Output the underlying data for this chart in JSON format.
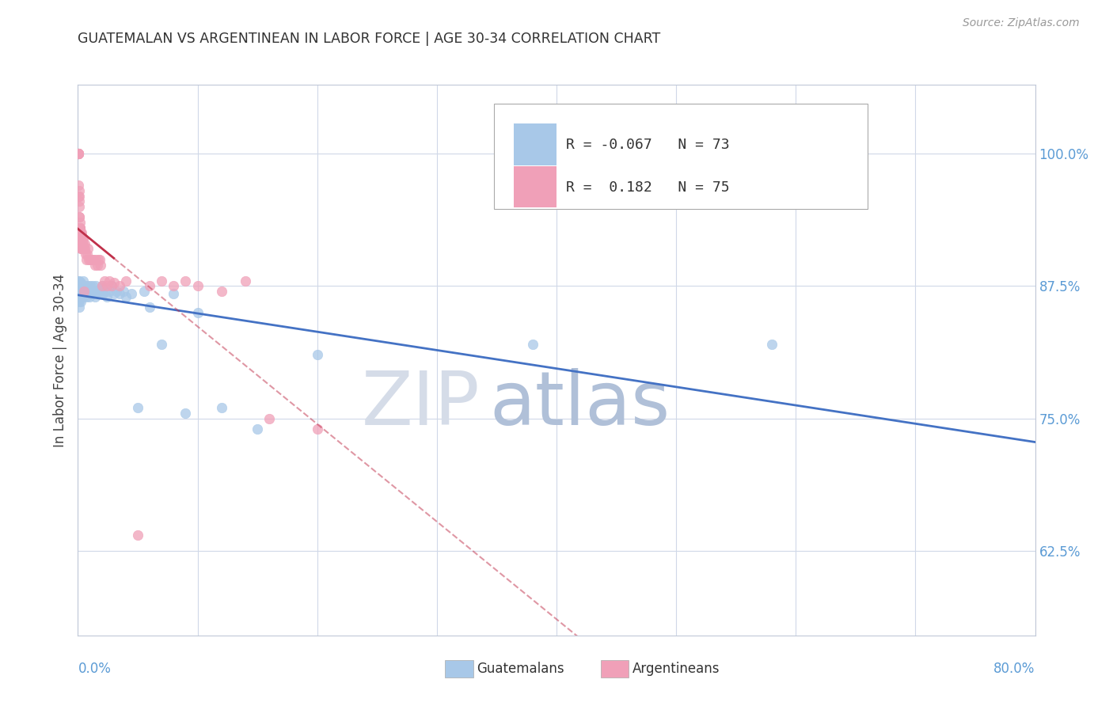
{
  "title": "GUATEMALAN VS ARGENTINEAN IN LABOR FORCE | AGE 30-34 CORRELATION CHART",
  "source": "Source: ZipAtlas.com",
  "ylabel": "In Labor Force | Age 30-34",
  "yticks": [
    0.625,
    0.75,
    0.875,
    1.0
  ],
  "ytick_labels": [
    "62.5%",
    "75.0%",
    "87.5%",
    "100.0%"
  ],
  "legend_label1": "Guatemalans",
  "legend_label2": "Argentineans",
  "R1": "-0.067",
  "N1": "73",
  "R2": "0.182",
  "N2": "75",
  "blue_color": "#A8C8E8",
  "pink_color": "#F0A0B8",
  "trend_blue": "#4472C4",
  "trend_pink": "#C0304A",
  "watermark_zip": "#D0DCF0",
  "watermark_atlas": "#A0B8D8",
  "background_color": "#FFFFFF",
  "xlim": [
    0.0,
    0.8
  ],
  "ylim": [
    0.545,
    1.065
  ],
  "guatemalan_x": [
    0.0005,
    0.0006,
    0.0007,
    0.0008,
    0.001,
    0.001,
    0.001,
    0.0012,
    0.0013,
    0.0014,
    0.0015,
    0.0016,
    0.0017,
    0.0018,
    0.002,
    0.0022,
    0.0023,
    0.0025,
    0.0027,
    0.0028,
    0.003,
    0.0032,
    0.0035,
    0.0038,
    0.004,
    0.0042,
    0.0045,
    0.0048,
    0.005,
    0.0055,
    0.006,
    0.0065,
    0.007,
    0.0075,
    0.008,
    0.0085,
    0.009,
    0.0095,
    0.01,
    0.0105,
    0.011,
    0.0115,
    0.012,
    0.013,
    0.014,
    0.015,
    0.016,
    0.017,
    0.018,
    0.019,
    0.02,
    0.021,
    0.022,
    0.024,
    0.026,
    0.028,
    0.03,
    0.032,
    0.035,
    0.038,
    0.04,
    0.045,
    0.05,
    0.055,
    0.06,
    0.07,
    0.08,
    0.09,
    0.1,
    0.12,
    0.15,
    0.2,
    0.38,
    0.58
  ],
  "guatemalan_y": [
    0.88,
    0.868,
    0.875,
    0.862,
    0.87,
    0.86,
    0.855,
    0.88,
    0.865,
    0.875,
    0.87,
    0.868,
    0.872,
    0.868,
    0.87,
    0.878,
    0.86,
    0.875,
    0.87,
    0.865,
    0.87,
    0.872,
    0.868,
    0.875,
    0.87,
    0.88,
    0.865,
    0.87,
    0.868,
    0.872,
    0.875,
    0.87,
    0.865,
    0.87,
    0.875,
    0.868,
    0.872,
    0.865,
    0.87,
    0.875,
    0.868,
    0.87,
    0.875,
    0.87,
    0.865,
    0.875,
    0.87,
    0.868,
    0.87,
    0.872,
    0.875,
    0.868,
    0.87,
    0.865,
    0.87,
    0.875,
    0.868,
    0.87,
    0.868,
    0.87,
    0.865,
    0.868,
    0.76,
    0.87,
    0.855,
    0.82,
    0.868,
    0.755,
    0.85,
    0.76,
    0.74,
    0.81,
    0.82,
    0.82
  ],
  "argentinean_x": [
    0.0003,
    0.0004,
    0.0005,
    0.0005,
    0.0005,
    0.0006,
    0.0006,
    0.0007,
    0.0007,
    0.0008,
    0.0008,
    0.0008,
    0.0009,
    0.001,
    0.001,
    0.0011,
    0.0012,
    0.0013,
    0.0014,
    0.0015,
    0.0016,
    0.0017,
    0.0018,
    0.0019,
    0.002,
    0.0021,
    0.0022,
    0.0023,
    0.0025,
    0.0027,
    0.0028,
    0.003,
    0.0032,
    0.0035,
    0.0038,
    0.004,
    0.0042,
    0.0045,
    0.0048,
    0.005,
    0.0055,
    0.006,
    0.0065,
    0.007,
    0.0075,
    0.008,
    0.009,
    0.01,
    0.011,
    0.012,
    0.013,
    0.014,
    0.015,
    0.016,
    0.017,
    0.018,
    0.019,
    0.02,
    0.022,
    0.024,
    0.026,
    0.028,
    0.03,
    0.035,
    0.04,
    0.05,
    0.06,
    0.07,
    0.08,
    0.09,
    0.1,
    0.12,
    0.14,
    0.16,
    0.2
  ],
  "argentinean_y": [
    1.0,
    1.0,
    1.0,
    1.0,
    1.0,
    1.0,
    1.0,
    0.96,
    0.97,
    0.95,
    0.94,
    0.965,
    0.93,
    0.955,
    0.96,
    0.93,
    0.94,
    0.92,
    0.93,
    0.92,
    0.935,
    0.93,
    0.925,
    0.92,
    0.93,
    0.925,
    0.91,
    0.92,
    0.92,
    0.915,
    0.925,
    0.91,
    0.915,
    0.92,
    0.915,
    0.91,
    0.915,
    0.92,
    0.91,
    0.87,
    0.915,
    0.91,
    0.905,
    0.9,
    0.905,
    0.91,
    0.9,
    0.9,
    0.9,
    0.9,
    0.9,
    0.895,
    0.9,
    0.895,
    0.9,
    0.9,
    0.895,
    0.875,
    0.88,
    0.875,
    0.88,
    0.875,
    0.878,
    0.875,
    0.88,
    0.64,
    0.875,
    0.88,
    0.875,
    0.88,
    0.875,
    0.87,
    0.88,
    0.75,
    0.74
  ]
}
